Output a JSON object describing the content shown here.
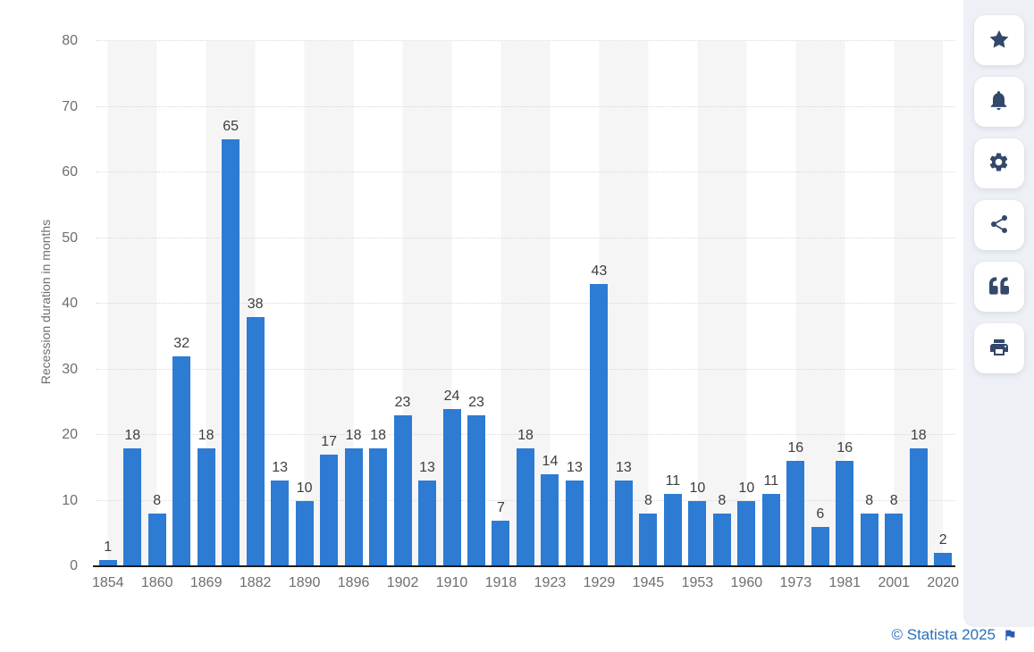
{
  "chart_data": {
    "type": "bar",
    "title": "",
    "xlabel": "",
    "ylabel": "Recession duration in months",
    "ylim": [
      0,
      80
    ],
    "yticks": [
      0,
      10,
      20,
      30,
      40,
      50,
      60,
      70,
      80
    ],
    "grid": "horizontal-dotted",
    "legend": "none",
    "x_tick_note": "only every other bar is labeled with a year",
    "bars": [
      {
        "x_label": "1854",
        "value": 1
      },
      {
        "x_label": "",
        "value": 18
      },
      {
        "x_label": "1860",
        "value": 8
      },
      {
        "x_label": "",
        "value": 32
      },
      {
        "x_label": "1869",
        "value": 18
      },
      {
        "x_label": "",
        "value": 65
      },
      {
        "x_label": "1882",
        "value": 38
      },
      {
        "x_label": "",
        "value": 13
      },
      {
        "x_label": "1890",
        "value": 10
      },
      {
        "x_label": "",
        "value": 17
      },
      {
        "x_label": "1896",
        "value": 18
      },
      {
        "x_label": "",
        "value": 18
      },
      {
        "x_label": "1902",
        "value": 23
      },
      {
        "x_label": "",
        "value": 13
      },
      {
        "x_label": "1910",
        "value": 24
      },
      {
        "x_label": "",
        "value": 23
      },
      {
        "x_label": "1918",
        "value": 7
      },
      {
        "x_label": "",
        "value": 18
      },
      {
        "x_label": "1923",
        "value": 14
      },
      {
        "x_label": "",
        "value": 13
      },
      {
        "x_label": "1929",
        "value": 43
      },
      {
        "x_label": "",
        "value": 13
      },
      {
        "x_label": "1945",
        "value": 8
      },
      {
        "x_label": "",
        "value": 11
      },
      {
        "x_label": "1953",
        "value": 10
      },
      {
        "x_label": "",
        "value": 8
      },
      {
        "x_label": "1960",
        "value": 10
      },
      {
        "x_label": "",
        "value": 11
      },
      {
        "x_label": "1973",
        "value": 16
      },
      {
        "x_label": "",
        "value": 6
      },
      {
        "x_label": "1981",
        "value": 16
      },
      {
        "x_label": "",
        "value": 8
      },
      {
        "x_label": "2001",
        "value": 8
      },
      {
        "x_label": "",
        "value": 18
      },
      {
        "x_label": "2020",
        "value": 2
      }
    ]
  },
  "toolbar": {
    "buttons": [
      {
        "name": "favorite",
        "icon": "star-icon"
      },
      {
        "name": "notifications",
        "icon": "bell-icon"
      },
      {
        "name": "settings",
        "icon": "gear-icon"
      },
      {
        "name": "share",
        "icon": "share-icon"
      },
      {
        "name": "cite",
        "icon": "quote-icon"
      },
      {
        "name": "print",
        "icon": "printer-icon"
      }
    ]
  },
  "footer": {
    "copyright": "© Statista 2025",
    "flag_icon": "flag-icon"
  },
  "colors": {
    "bar": "#2d7bd3",
    "value_label": "#3d3d3d",
    "tick_label": "#6e6e6e",
    "gridline": "#d9d9d9",
    "axis_line": "#1d1d1d",
    "stripe": "#f5f5f6",
    "toolbar_bg": "#edf0f5",
    "toolbar_icon": "#33486b",
    "footer_link": "#2a6fb8",
    "flag": "#2a5caf"
  }
}
